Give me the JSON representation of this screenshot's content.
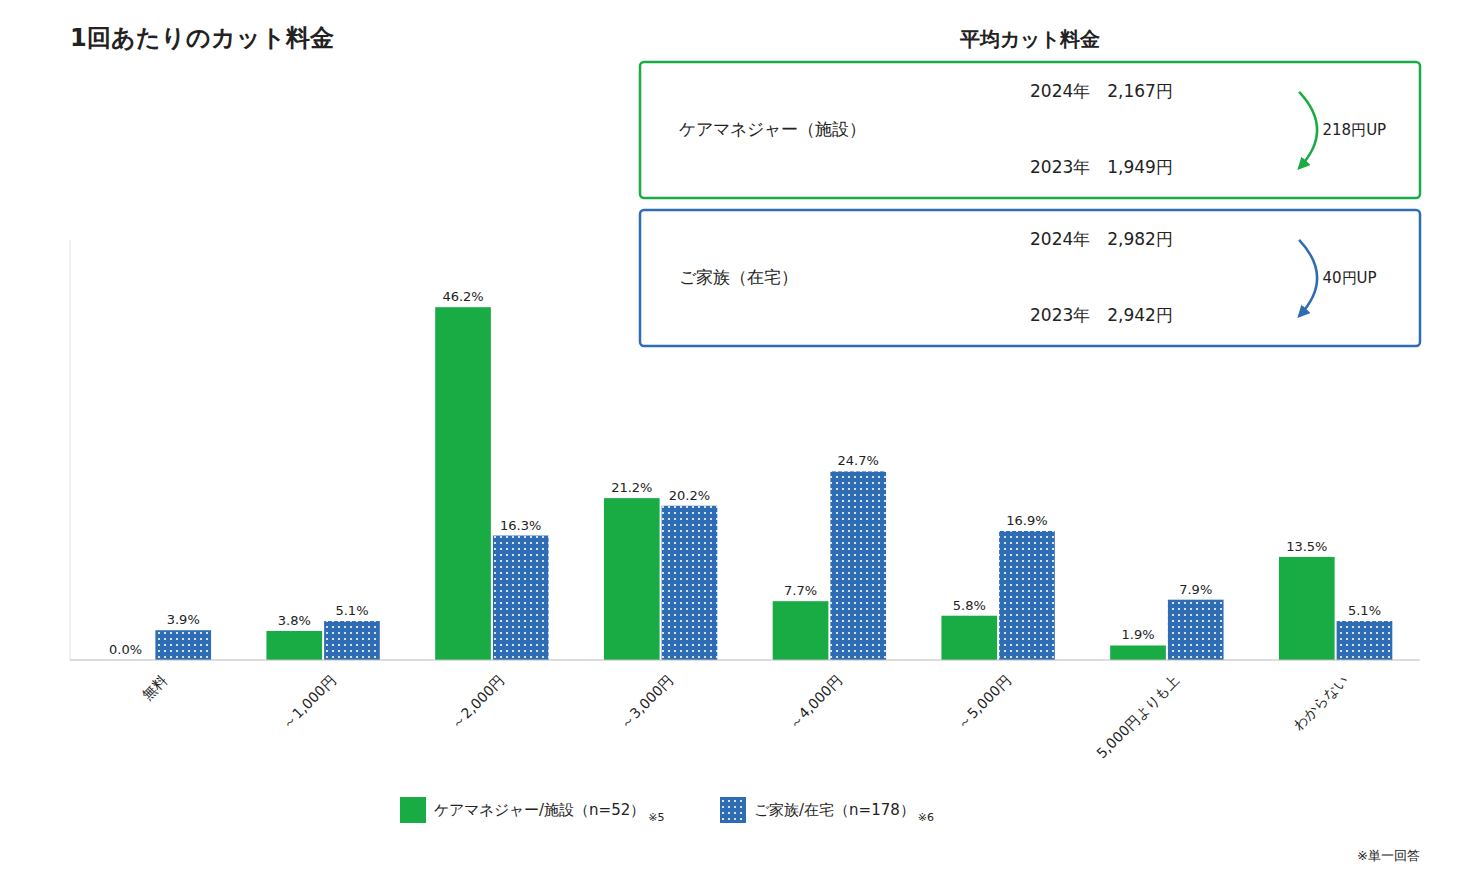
{
  "chart_data": {
    "type": "bar",
    "title": "1回あたりのカット料金",
    "categories": [
      "無料",
      "～1,000円",
      "～2,000円",
      "～3,000円",
      "～4,000円",
      "～5,000円",
      "5,000円よりも上",
      "わからない"
    ],
    "series": [
      {
        "name": "ケアマネジャー/施設（n=52）",
        "color": "#1aac44",
        "values": [
          0.0,
          3.8,
          46.2,
          21.2,
          7.7,
          5.8,
          1.9,
          13.5
        ],
        "value_labels": [
          "0.0%",
          "3.8%",
          "46.2%",
          "21.2%",
          "7.7%",
          "5.8%",
          "1.9%",
          "13.5%"
        ]
      },
      {
        "name": "ご家族/在宅（n=178）",
        "color": "#2e6db4",
        "values": [
          3.9,
          5.1,
          16.3,
          20.2,
          24.7,
          16.9,
          7.9,
          5.1
        ],
        "value_labels": [
          "3.9%",
          "5.1%",
          "16.3%",
          "20.2%",
          "24.7%",
          "16.9%",
          "7.9%",
          "5.1%"
        ]
      }
    ],
    "ylim": [
      0,
      55
    ],
    "grid": false,
    "legend": "bottom",
    "data_labels": true,
    "tick_labels": "x",
    "annotations": [
      "平均カット料金",
      "ケアマネジャー（施設）",
      "2024年　2,167円",
      "2023年　1,949円",
      "218円UP",
      "ご家族（在宅）",
      "2024年　2,982円",
      "2023年　2,942円",
      "40円UP",
      "※5",
      "※6",
      "※単一回答"
    ]
  }
}
